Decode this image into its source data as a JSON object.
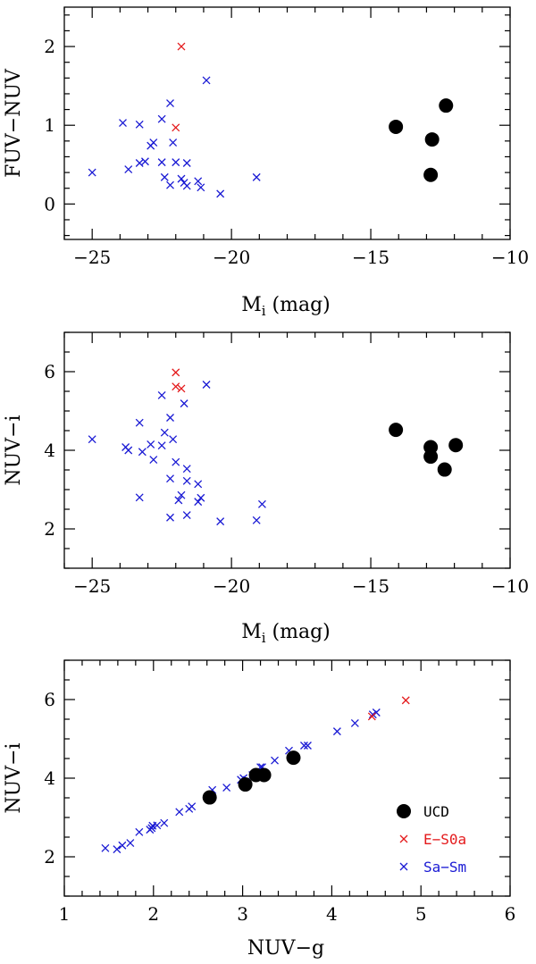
{
  "colors": {
    "ucd": "#000000",
    "e_s0a": "#e41a1c",
    "sa_sm": "#1a1ad4"
  },
  "chart_data": [
    {
      "type": "scatter",
      "xlabel_main": "M",
      "xlabel_sub": "i",
      "xlabel_rest": " (mag)",
      "ylabel": "FUV−NUV",
      "xlim": [
        -26,
        -10
      ],
      "ylim": [
        -0.45,
        2.5
      ],
      "xticks_major": [
        -25,
        -20,
        -15,
        -10
      ],
      "xticks_minor_step": 1,
      "yticks_major": [
        0,
        1,
        2
      ],
      "yticks_minor_step": 0.2,
      "series": [
        {
          "name": "UCD",
          "marker": "circle",
          "points": [
            [
              -14.1,
              0.98
            ],
            [
              -12.8,
              0.82
            ],
            [
              -12.3,
              1.25
            ],
            [
              -12.85,
              0.37
            ]
          ]
        },
        {
          "name": "E-S0a",
          "marker": "cross",
          "points": [
            [
              -21.8,
              2.0
            ],
            [
              -22.0,
              0.97
            ]
          ]
        },
        {
          "name": "Sa-Sm",
          "marker": "cross",
          "points": [
            [
              -25.0,
              0.4
            ],
            [
              -23.9,
              1.03
            ],
            [
              -23.7,
              0.44
            ],
            [
              -23.3,
              1.01
            ],
            [
              -23.3,
              0.52
            ],
            [
              -23.1,
              0.54
            ],
            [
              -22.9,
              0.74
            ],
            [
              -22.8,
              0.78
            ],
            [
              -22.5,
              1.08
            ],
            [
              -22.5,
              0.53
            ],
            [
              -22.4,
              0.34
            ],
            [
              -22.2,
              1.28
            ],
            [
              -22.1,
              0.78
            ],
            [
              -22.0,
              0.53
            ],
            [
              -22.2,
              0.24
            ],
            [
              -21.8,
              0.32
            ],
            [
              -21.7,
              0.27
            ],
            [
              -21.6,
              0.23
            ],
            [
              -21.6,
              0.52
            ],
            [
              -21.2,
              0.29
            ],
            [
              -21.1,
              0.21
            ],
            [
              -20.9,
              1.57
            ],
            [
              -20.4,
              0.13
            ],
            [
              -19.1,
              0.34
            ]
          ]
        }
      ]
    },
    {
      "type": "scatter",
      "xlabel_main": "M",
      "xlabel_sub": "i",
      "xlabel_rest": " (mag)",
      "ylabel": "NUV−i",
      "xlim": [
        -26,
        -10
      ],
      "ylim": [
        1.0,
        7.0
      ],
      "xticks_major": [
        -25,
        -20,
        -15,
        -10
      ],
      "xticks_minor_step": 1,
      "yticks_major": [
        2,
        4,
        6
      ],
      "yticks_minor_step": 0.5,
      "series": [
        {
          "name": "UCD",
          "marker": "circle",
          "points": [
            [
              -14.1,
              4.52
            ],
            [
              -12.85,
              4.08
            ],
            [
              -12.85,
              3.84
            ],
            [
              -11.95,
              4.13
            ],
            [
              -12.35,
              3.51
            ]
          ]
        },
        {
          "name": "E-S0a",
          "marker": "cross",
          "points": [
            [
              -22.0,
              5.98
            ],
            [
              -22.0,
              5.62
            ],
            [
              -21.8,
              5.57
            ]
          ]
        },
        {
          "name": "Sa-Sm",
          "marker": "cross",
          "points": [
            [
              -25.0,
              4.28
            ],
            [
              -23.8,
              4.08
            ],
            [
              -23.7,
              4.0
            ],
            [
              -23.3,
              4.7
            ],
            [
              -23.2,
              3.96
            ],
            [
              -23.3,
              2.8
            ],
            [
              -22.9,
              4.15
            ],
            [
              -22.8,
              3.76
            ],
            [
              -22.5,
              5.4
            ],
            [
              -22.4,
              4.45
            ],
            [
              -22.5,
              4.12
            ],
            [
              -22.2,
              4.83
            ],
            [
              -22.1,
              4.28
            ],
            [
              -22.2,
              3.28
            ],
            [
              -22.2,
              2.29
            ],
            [
              -22.0,
              3.7
            ],
            [
              -21.8,
              2.86
            ],
            [
              -21.9,
              2.73
            ],
            [
              -21.7,
              5.19
            ],
            [
              -21.6,
              3.53
            ],
            [
              -21.6,
              3.22
            ],
            [
              -21.6,
              2.35
            ],
            [
              -21.2,
              3.14
            ],
            [
              -21.2,
              2.69
            ],
            [
              -21.1,
              2.79
            ],
            [
              -20.9,
              5.67
            ],
            [
              -20.4,
              2.19
            ],
            [
              -19.1,
              2.22
            ],
            [
              -18.9,
              2.63
            ]
          ]
        }
      ]
    },
    {
      "type": "scatter",
      "xlabel": "NUV−g",
      "ylabel": "NUV−i",
      "xlim": [
        1,
        6
      ],
      "ylim": [
        1.0,
        7.0
      ],
      "xticks_major": [
        1,
        2,
        3,
        4,
        5,
        6
      ],
      "xticks_minor_step": 0.2,
      "yticks_major": [
        2,
        4,
        6
      ],
      "yticks_minor_step": 0.5,
      "series": [
        {
          "name": "UCD",
          "marker": "circle",
          "points": [
            [
              2.63,
              3.51
            ],
            [
              3.03,
              3.84
            ],
            [
              3.15,
              4.08
            ],
            [
              3.24,
              4.08
            ],
            [
              3.57,
              4.52
            ]
          ]
        },
        {
          "name": "E-S0a",
          "marker": "cross",
          "points": [
            [
              4.45,
              5.57
            ],
            [
              4.83,
              5.98
            ]
          ]
        },
        {
          "name": "Sa-Sm",
          "marker": "cross",
          "points": [
            [
              1.46,
              2.22
            ],
            [
              1.59,
              2.19
            ],
            [
              1.65,
              2.29
            ],
            [
              1.74,
              2.35
            ],
            [
              1.84,
              2.63
            ],
            [
              1.96,
              2.69
            ],
            [
              1.98,
              2.73
            ],
            [
              1.99,
              2.79
            ],
            [
              2.04,
              2.8
            ],
            [
              2.12,
              2.86
            ],
            [
              2.29,
              3.14
            ],
            [
              2.4,
              3.22
            ],
            [
              2.43,
              3.28
            ],
            [
              2.62,
              3.53
            ],
            [
              2.66,
              3.7
            ],
            [
              2.82,
              3.76
            ],
            [
              2.98,
              3.96
            ],
            [
              3.01,
              4.0
            ],
            [
              3.11,
              4.08
            ],
            [
              3.15,
              4.12
            ],
            [
              3.17,
              4.15
            ],
            [
              3.2,
              4.28
            ],
            [
              3.22,
              4.28
            ],
            [
              3.36,
              4.45
            ],
            [
              3.52,
              4.7
            ],
            [
              3.69,
              4.83
            ],
            [
              3.73,
              4.83
            ],
            [
              4.06,
              5.19
            ],
            [
              4.26,
              5.4
            ],
            [
              4.46,
              5.62
            ],
            [
              4.5,
              5.67
            ]
          ]
        }
      ]
    }
  ],
  "legend": {
    "items": [
      {
        "name": "UCD",
        "label": "UCD"
      },
      {
        "name": "E-S0a",
        "label": "E−S0a"
      },
      {
        "name": "Sa-Sm",
        "label": "Sa−Sm"
      }
    ]
  }
}
